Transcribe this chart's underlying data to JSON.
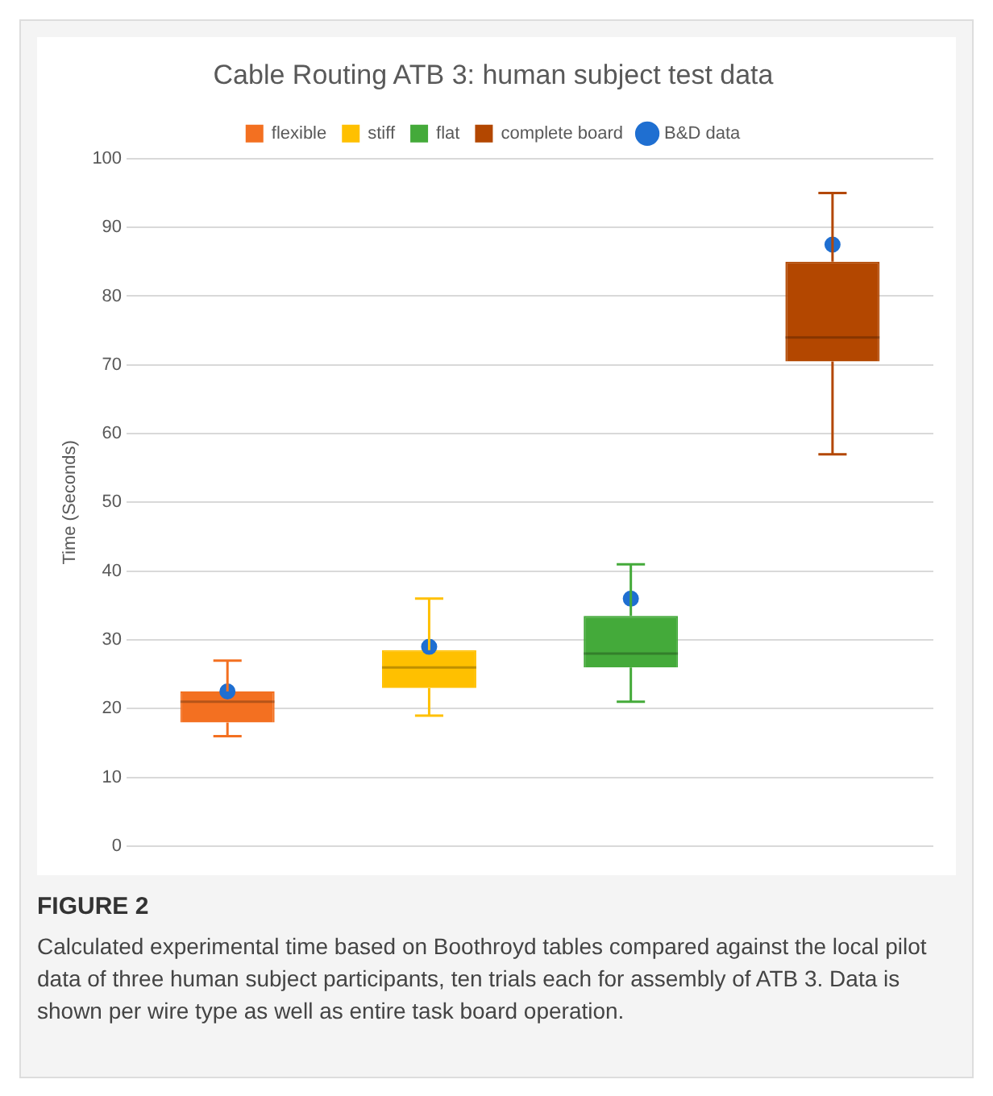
{
  "chart_data": {
    "type": "box",
    "title": "Cable Routing ATB 3: human subject test data",
    "ylabel": "Time (Seconds)",
    "categories": [
      null,
      null,
      null,
      null
    ],
    "series": [
      {
        "name": "flexible",
        "type": "box",
        "color": "#f37021",
        "boxes": [
          {
            "low": 16,
            "q1": 18,
            "median": 21,
            "q3": 22.5,
            "high": 27
          },
          null,
          null,
          null
        ]
      },
      {
        "name": "stiff",
        "type": "box",
        "color": "#ffc000",
        "boxes": [
          null,
          {
            "low": 19,
            "q1": 23,
            "median": 26,
            "q3": 28.5,
            "high": 36
          },
          null,
          null
        ]
      },
      {
        "name": "flat",
        "type": "box",
        "color": "#44aa3a",
        "boxes": [
          null,
          null,
          {
            "low": 21,
            "q1": 26,
            "median": 28,
            "q3": 33.5,
            "high": 41
          },
          null
        ]
      },
      {
        "name": "complete board",
        "type": "box",
        "color": "#b34700",
        "boxes": [
          null,
          null,
          null,
          {
            "low": 57,
            "q1": 70.5,
            "median": 74,
            "q3": 85,
            "high": 95
          }
        ]
      },
      {
        "name": "B&D data",
        "type": "scatter",
        "color": "#1f6fd1",
        "marker": "circle",
        "values": [
          22.5,
          29,
          36,
          87.5
        ]
      }
    ],
    "ylim": [
      0,
      100
    ],
    "yticks": [
      0,
      10,
      20,
      30,
      40,
      50,
      60,
      70,
      80,
      90,
      100
    ],
    "grid": "y",
    "legend": "top",
    "tick_labels": "y",
    "annotations": [
      "FIGURE 2",
      "Calculated experimental time based on Boothroyd tables compared against the local pilot data of three human subject participants, ten trials each for assembly of ATB 3. Data is shown per wire type as well as entire task board operation."
    ]
  }
}
